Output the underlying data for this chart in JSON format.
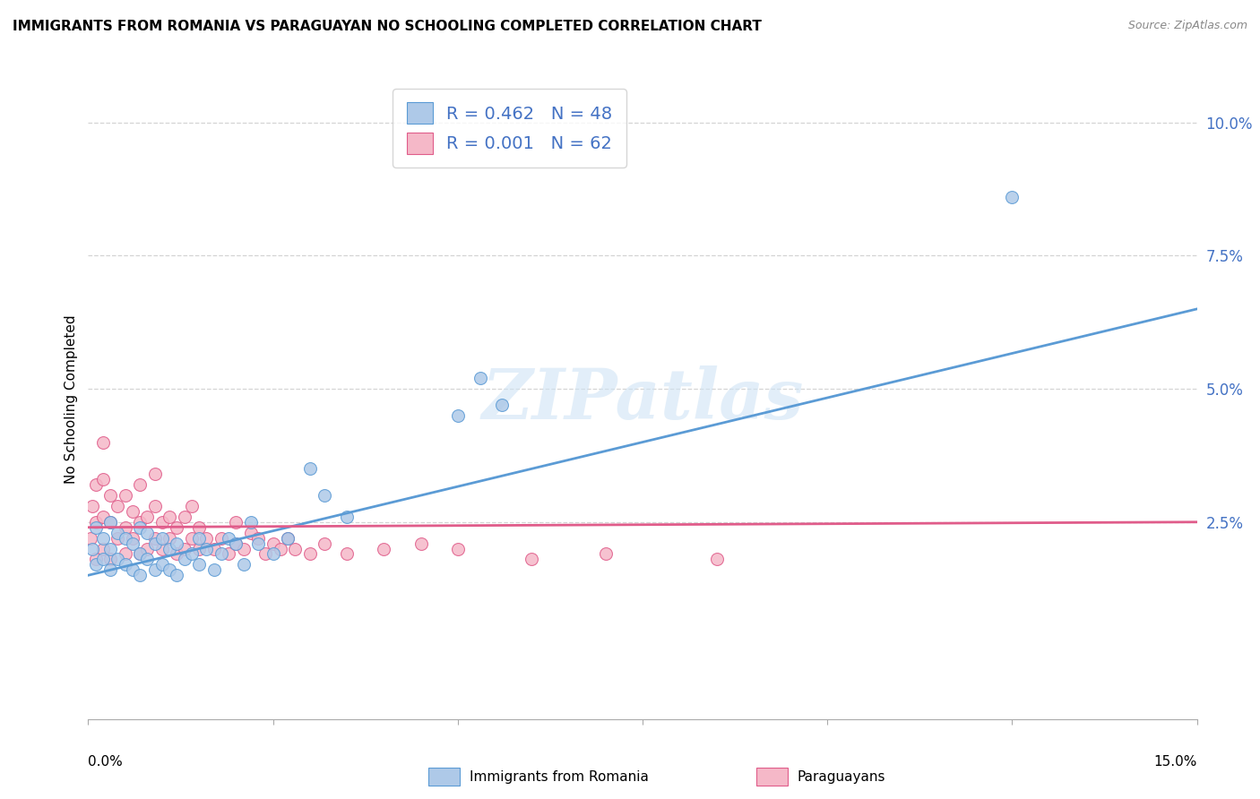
{
  "title": "IMMIGRANTS FROM ROMANIA VS PARAGUAYAN NO SCHOOLING COMPLETED CORRELATION CHART",
  "source": "Source: ZipAtlas.com",
  "ylabel": "No Schooling Completed",
  "yticks": [
    "10.0%",
    "7.5%",
    "5.0%",
    "2.5%"
  ],
  "ytick_vals": [
    0.1,
    0.075,
    0.05,
    0.025
  ],
  "xlim": [
    0.0,
    0.15
  ],
  "ylim": [
    -0.012,
    0.108
  ],
  "legend_romania_r": "0.462",
  "legend_romania_n": "48",
  "legend_paraguay_r": "0.001",
  "legend_paraguay_n": "62",
  "blue_color": "#aec9e8",
  "pink_color": "#f5b8c8",
  "line_blue": "#5b9bd5",
  "line_pink": "#e05c8a",
  "text_color": "#4472c4",
  "romania_line_x0": 0.0,
  "romania_line_y0": 0.015,
  "romania_line_x1": 0.15,
  "romania_line_y1": 0.065,
  "paraguay_line_x0": 0.0,
  "paraguay_line_y0": 0.024,
  "paraguay_line_x1": 0.15,
  "paraguay_line_y1": 0.025,
  "romania_scatter_x": [
    0.0005,
    0.001,
    0.001,
    0.002,
    0.002,
    0.003,
    0.003,
    0.003,
    0.004,
    0.004,
    0.005,
    0.005,
    0.006,
    0.006,
    0.007,
    0.007,
    0.007,
    0.008,
    0.008,
    0.009,
    0.009,
    0.01,
    0.01,
    0.011,
    0.011,
    0.012,
    0.012,
    0.013,
    0.014,
    0.015,
    0.015,
    0.016,
    0.017,
    0.018,
    0.019,
    0.02,
    0.021,
    0.022,
    0.023,
    0.025,
    0.027,
    0.03,
    0.032,
    0.035,
    0.05,
    0.053,
    0.056,
    0.125
  ],
  "romania_scatter_y": [
    0.02,
    0.017,
    0.024,
    0.018,
    0.022,
    0.016,
    0.02,
    0.025,
    0.018,
    0.023,
    0.017,
    0.022,
    0.016,
    0.021,
    0.015,
    0.019,
    0.024,
    0.018,
    0.023,
    0.016,
    0.021,
    0.017,
    0.022,
    0.016,
    0.02,
    0.015,
    0.021,
    0.018,
    0.019,
    0.017,
    0.022,
    0.02,
    0.016,
    0.019,
    0.022,
    0.021,
    0.017,
    0.025,
    0.021,
    0.019,
    0.022,
    0.035,
    0.03,
    0.026,
    0.045,
    0.052,
    0.047,
    0.086
  ],
  "paraguay_scatter_x": [
    0.0003,
    0.0005,
    0.001,
    0.001,
    0.001,
    0.002,
    0.002,
    0.002,
    0.002,
    0.003,
    0.003,
    0.003,
    0.004,
    0.004,
    0.005,
    0.005,
    0.005,
    0.006,
    0.006,
    0.007,
    0.007,
    0.007,
    0.008,
    0.008,
    0.009,
    0.009,
    0.009,
    0.01,
    0.01,
    0.011,
    0.011,
    0.012,
    0.012,
    0.013,
    0.013,
    0.014,
    0.014,
    0.015,
    0.015,
    0.016,
    0.017,
    0.018,
    0.019,
    0.02,
    0.02,
    0.021,
    0.022,
    0.023,
    0.024,
    0.025,
    0.026,
    0.027,
    0.028,
    0.03,
    0.032,
    0.035,
    0.04,
    0.045,
    0.05,
    0.06,
    0.07,
    0.085
  ],
  "paraguay_scatter_y": [
    0.022,
    0.028,
    0.018,
    0.025,
    0.032,
    0.02,
    0.026,
    0.033,
    0.04,
    0.018,
    0.025,
    0.03,
    0.022,
    0.028,
    0.019,
    0.024,
    0.03,
    0.022,
    0.027,
    0.019,
    0.025,
    0.032,
    0.02,
    0.026,
    0.022,
    0.028,
    0.034,
    0.02,
    0.025,
    0.022,
    0.026,
    0.019,
    0.024,
    0.02,
    0.026,
    0.022,
    0.028,
    0.02,
    0.024,
    0.022,
    0.02,
    0.022,
    0.019,
    0.021,
    0.025,
    0.02,
    0.023,
    0.022,
    0.019,
    0.021,
    0.02,
    0.022,
    0.02,
    0.019,
    0.021,
    0.019,
    0.02,
    0.021,
    0.02,
    0.018,
    0.019,
    0.018
  ],
  "watermark": "ZIPatlas",
  "background_color": "#ffffff",
  "grid_color": "#d0d0d0"
}
